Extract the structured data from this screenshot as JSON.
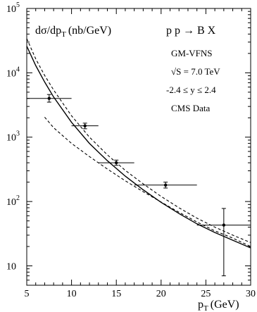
{
  "chart_data": {
    "type": "line",
    "xlabel": "p",
    "xlabel_sub": "T",
    "xlabel_unit": "(GeV)",
    "ylabel": "dσ/dp",
    "ylabel_sub": "T",
    "ylabel_unit": "(nb/GeV)",
    "xlim": [
      5,
      30
    ],
    "ylim": [
      5,
      100000
    ],
    "yscale": "log",
    "grid": false,
    "x_ticks": [
      5,
      10,
      15,
      20,
      25,
      30
    ],
    "y_ticks": [
      {
        "value": 10,
        "base": "10",
        "exp": ""
      },
      {
        "value": 100,
        "base": "10",
        "exp": "2"
      },
      {
        "value": 1000,
        "base": "10",
        "exp": "3"
      },
      {
        "value": 10000,
        "base": "10",
        "exp": "4"
      },
      {
        "value": 100000,
        "base": "10",
        "exp": "5"
      }
    ],
    "annotations": {
      "process": "p p → B X",
      "scheme": "GM-VFNS",
      "energy": "√S = 7.0 TeV",
      "rapidity": "-2.4 ≤  y ≤ 2.4",
      "data_label": "CMS Data"
    },
    "series": [
      {
        "style": "solid",
        "x": [
          5,
          6,
          7,
          8,
          10,
          12,
          14,
          16,
          18,
          20,
          22,
          24,
          26,
          28,
          30
        ],
        "y": [
          26000,
          13000,
          7200,
          4200,
          1700,
          800,
          430,
          248,
          152,
          97,
          65,
          45,
          33,
          25,
          19
        ]
      },
      {
        "style": "dashed",
        "x": [
          5,
          6,
          7,
          8,
          10,
          12,
          14,
          16,
          18,
          20,
          22,
          24,
          26,
          28,
          30
        ],
        "y": [
          34000,
          16500,
          9100,
          5400,
          2150,
          1000,
          530,
          305,
          188,
          120,
          80,
          55,
          40,
          30,
          23
        ]
      },
      {
        "style": "dashed",
        "x": [
          7,
          8,
          10,
          12,
          14,
          16,
          18,
          20,
          22,
          24,
          26,
          28,
          30
        ],
        "y": [
          2050,
          1400,
          800,
          500,
          320,
          210,
          142,
          98,
          68,
          48,
          35,
          27,
          20
        ]
      }
    ],
    "data_points": [
      {
        "x": 7.5,
        "xerr": [
          5,
          10
        ],
        "y": 4000,
        "yerr": [
          3500,
          4600
        ]
      },
      {
        "x": 11.5,
        "xerr": [
          10,
          13
        ],
        "y": 1500,
        "yerr": [
          1350,
          1650
        ]
      },
      {
        "x": 15,
        "xerr": [
          13,
          17
        ],
        "y": 400,
        "yerr": [
          365,
          440
        ]
      },
      {
        "x": 20.5,
        "xerr": [
          17,
          24
        ],
        "y": 180,
        "yerr": [
          162,
          200
        ]
      },
      {
        "x": 27,
        "xerr": [
          24,
          30
        ],
        "y": 43,
        "yerr": [
          7,
          78
        ]
      }
    ]
  }
}
